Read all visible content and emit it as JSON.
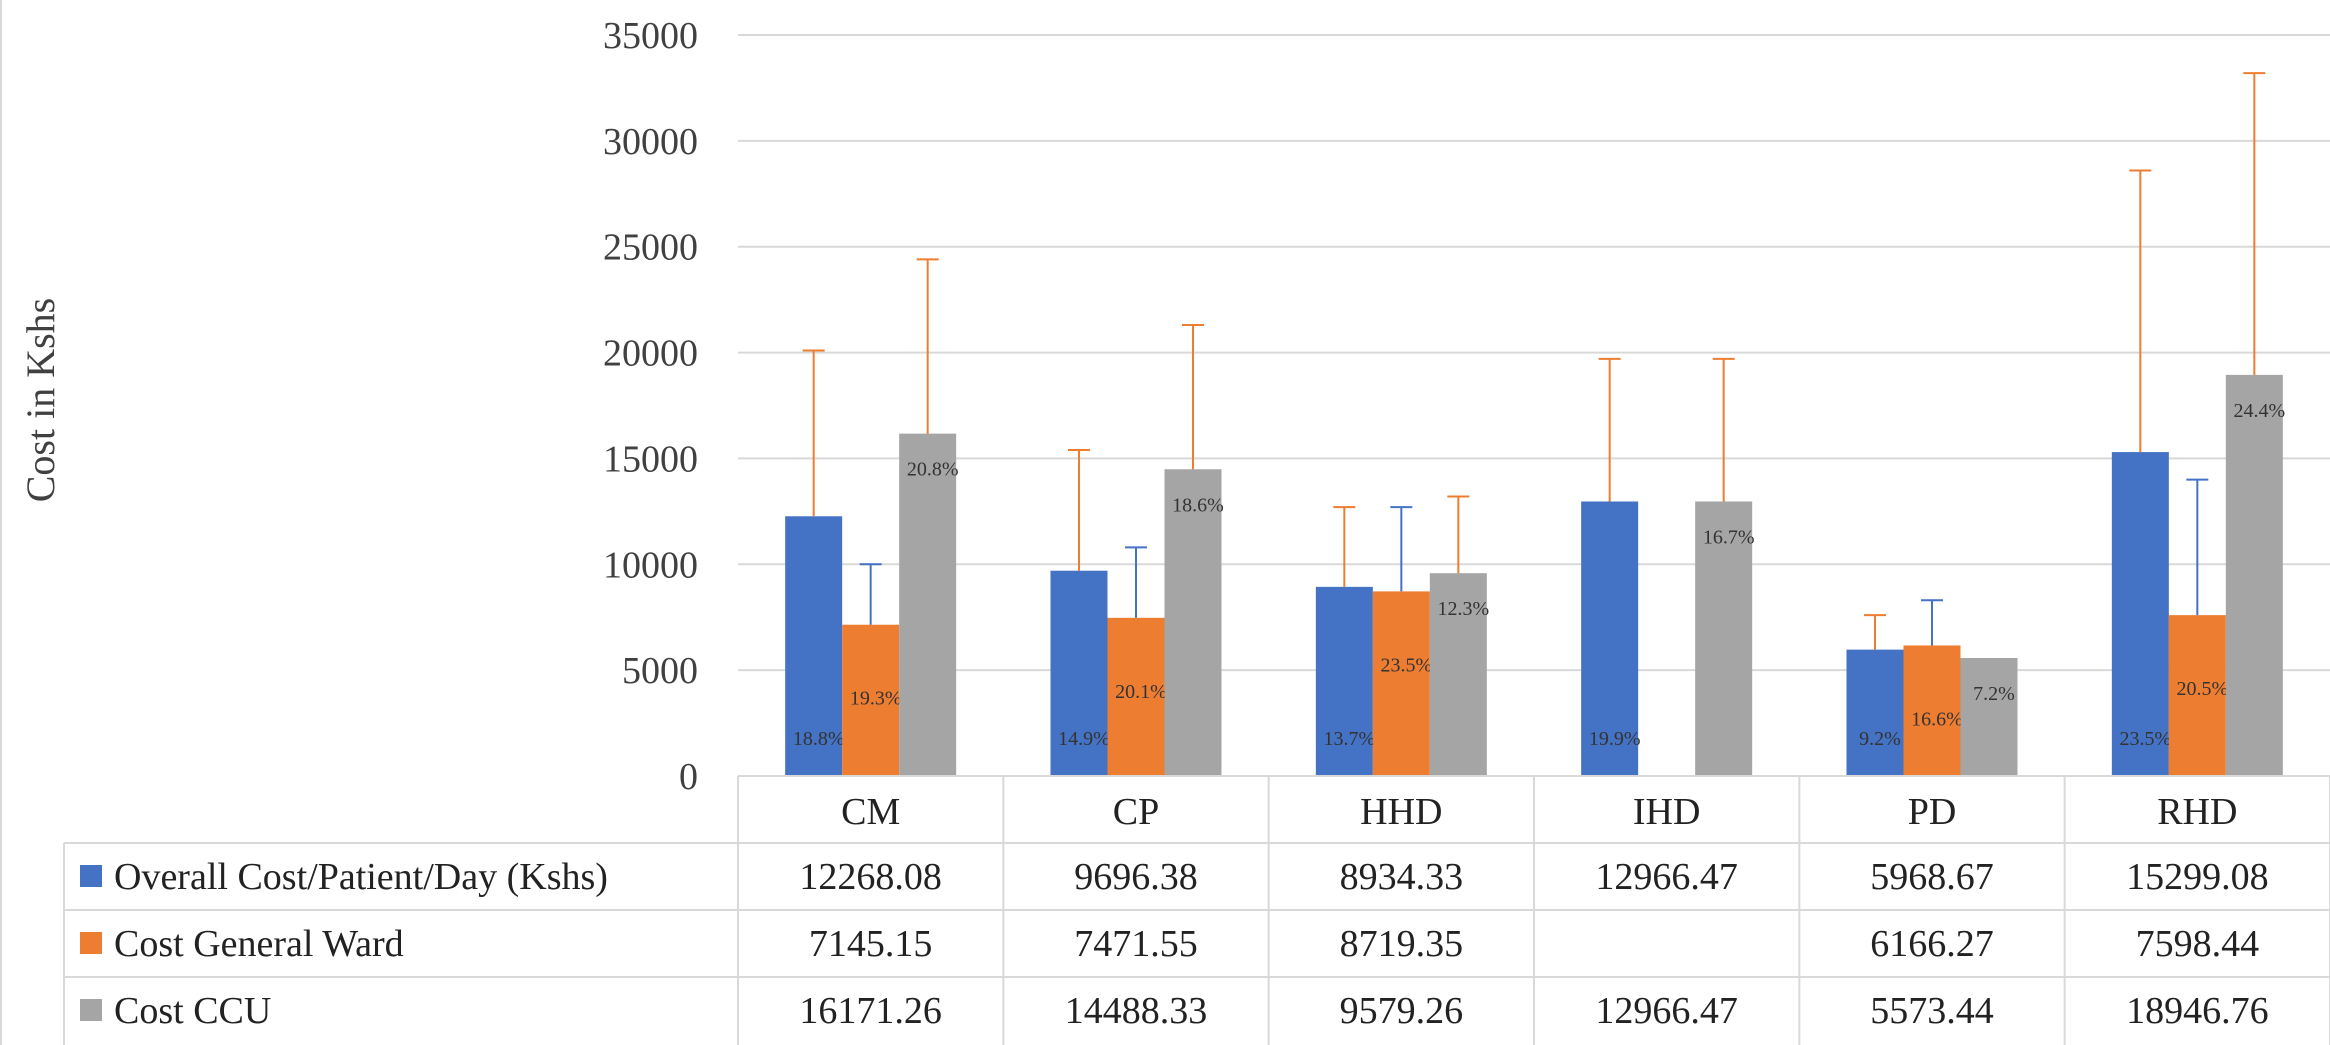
{
  "chart_data": {
    "type": "bar",
    "ylabel": "Cost in Kshs",
    "ylim": [
      0,
      35000
    ],
    "yticks": [
      0,
      5000,
      10000,
      15000,
      20000,
      25000,
      30000,
      35000
    ],
    "ytick_labels": [
      "0",
      "5000",
      "10000",
      "15000",
      "20000",
      "25000",
      "30000",
      "35000"
    ],
    "grid": true,
    "legend": "data-table",
    "categories": [
      "CM",
      "CP",
      "HHD",
      "IHD",
      "PD",
      "RHD"
    ],
    "series": [
      {
        "name": "Overall Cost/Patient/Day (Kshs)",
        "color": "#4472c4",
        "values": [
          12268.08,
          9696.38,
          8934.33,
          12966.47,
          5968.67,
          15299.08
        ],
        "table_labels": [
          "12268.08",
          "9696.38",
          "8934.33",
          "12966.47",
          "5968.67",
          "15299.08"
        ],
        "error_upper": [
          20100,
          15400,
          12700,
          19700,
          7600,
          28600
        ],
        "error_color": "#ed7d31",
        "pct_labels": [
          "18.8%",
          "14.9%",
          "13.7%",
          "19.9%",
          "9.2%",
          "23.5%"
        ]
      },
      {
        "name": "Cost General Ward",
        "color": "#ed7d31",
        "values": [
          7145.15,
          7471.55,
          8719.35,
          null,
          6166.27,
          7598.44
        ],
        "table_labels": [
          "7145.15",
          "7471.55",
          "8719.35",
          "",
          "6166.27",
          "7598.44"
        ],
        "error_upper": [
          10000,
          10800,
          12700,
          null,
          8300,
          14000
        ],
        "error_color": "#4472c4",
        "pct_labels": [
          "19.3%",
          "20.1%",
          "23.5%",
          "",
          "16.6%",
          "20.5%"
        ]
      },
      {
        "name": "Cost CCU",
        "color": "#a5a5a5",
        "values": [
          16171.26,
          14488.33,
          9579.26,
          12966.47,
          5573.44,
          18946.76
        ],
        "table_labels": [
          "16171.26",
          "14488.33",
          "9579.26",
          "12966.47",
          "5573.44",
          "18946.76"
        ],
        "error_upper": [
          24400,
          21300,
          13200,
          19700,
          null,
          33200
        ],
        "error_color": "#ed7d31",
        "pct_labels": [
          "20.8%",
          "18.6%",
          "12.3%",
          "16.7%",
          "7.2%",
          "24.4%"
        ]
      }
    ]
  }
}
